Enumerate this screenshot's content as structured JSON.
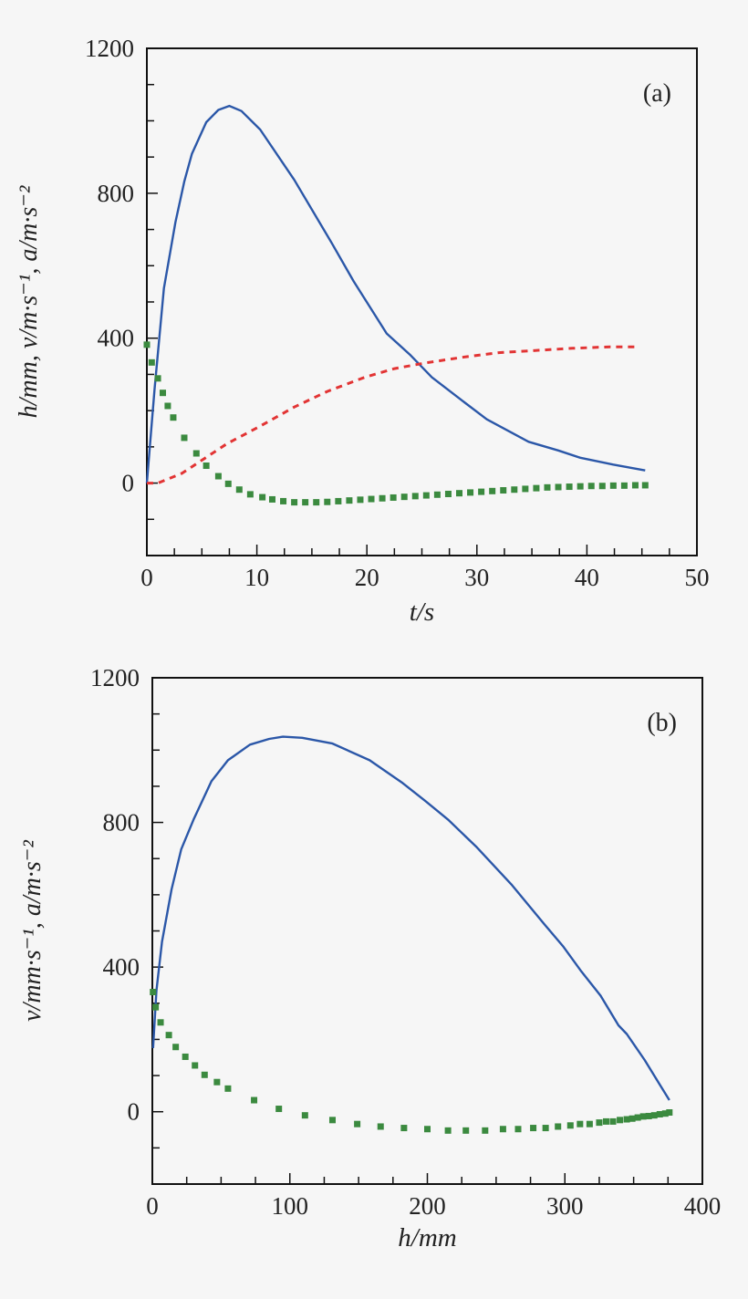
{
  "chart_data": [
    {
      "type": "line",
      "panel_label": "(a)",
      "xlabel": "t/s",
      "ylabel": "h/mm, v/m·s⁻¹, a/m·s⁻²",
      "xlim": [
        0,
        50
      ],
      "ylim": [
        -200,
        1200
      ],
      "xticks": [
        "0",
        "10",
        "20",
        "30",
        "40",
        "50"
      ],
      "yticks": [
        "0",
        "400",
        "800",
        "1200"
      ],
      "grid": false,
      "colors": {
        "v": "#2b57a8",
        "h": "#e23434",
        "a": "#3b8a3f"
      },
      "series": [
        {
          "key": "v",
          "style": "solid",
          "x": [
            0,
            0.7,
            1.55,
            2.6,
            3.4,
            4.1,
            5.4,
            6.5,
            7.5,
            8.6,
            10.3,
            13.4,
            16.8,
            18.8,
            21.8,
            23.9,
            25.9,
            28.6,
            30.9,
            34.7,
            37.4,
            39.4,
            42.4,
            45.3
          ],
          "y": [
            0,
            258,
            538,
            721,
            832,
            909,
            996,
            1030,
            1041,
            1027,
            976,
            837,
            663,
            557,
            413,
            355,
            292,
            229,
            176,
            114,
            90,
            70,
            51,
            35
          ]
        },
        {
          "key": "h",
          "style": "dashed",
          "x": [
            0,
            1,
            3.2,
            4.9,
            7.3,
            10.3,
            13.4,
            16.4,
            19.8,
            22.5,
            25.2,
            28.6,
            32,
            35.3,
            38.7,
            42.1,
            44.8
          ],
          "y": [
            0,
            0,
            27,
            61,
            109,
            157,
            210,
            253,
            292,
            316,
            331,
            347,
            360,
            366,
            372,
            376,
            376
          ]
        },
        {
          "key": "a",
          "style": "dotted",
          "x": [
            0,
            0.44,
            1,
            1.45,
            1.9,
            2.4,
            3.4,
            4.5,
            5.4,
            6.5,
            7.4,
            8.4,
            9.4,
            10.5,
            11.4,
            12.4,
            13.4,
            14.4,
            15.4,
            16.4,
            17.4,
            18.4,
            19.4,
            20.4,
            21.4,
            22.4,
            23.4,
            24.4,
            25.4,
            26.4,
            27.4,
            28.4,
            29.4,
            30.4,
            31.4,
            32.4,
            33.4,
            34.4,
            35.4,
            36.4,
            37.4,
            38.4,
            39.4,
            40.4,
            41.4,
            42.4,
            43.4,
            44.4,
            45.3
          ],
          "y": [
            382,
            333,
            289,
            249,
            213,
            181,
            125,
            82,
            48,
            19,
            -2,
            -18,
            -31,
            -39,
            -45,
            -50,
            -53,
            -53,
            -53,
            -52,
            -50,
            -48,
            -46,
            -44,
            -42,
            -40,
            -38,
            -36,
            -34,
            -32,
            -30,
            -28,
            -26,
            -24,
            -22,
            -20,
            -18,
            -16,
            -14,
            -12,
            -11,
            -10,
            -9,
            -8,
            -8,
            -7,
            -7,
            -6,
            -6
          ]
        }
      ]
    },
    {
      "type": "line",
      "panel_label": "(b)",
      "xlabel": "h/mm",
      "ylabel": "v/mm·s⁻¹, a/m·s⁻²",
      "xlim": [
        0,
        400
      ],
      "ylim": [
        -200,
        1200
      ],
      "xticks": [
        "0",
        "100",
        "200",
        "300",
        "400"
      ],
      "yticks": [
        "0",
        "400",
        "800",
        "1200"
      ],
      "grid": false,
      "colors": {
        "v": "#2b57a8",
        "a": "#3b8a3f"
      },
      "series": [
        {
          "key": "v",
          "style": "solid",
          "x": [
            0.5,
            3,
            7,
            14,
            21,
            30,
            43,
            55,
            71,
            85,
            95,
            109,
            131,
            158,
            182,
            198,
            215,
            236,
            261,
            285,
            299,
            312,
            326,
            339,
            345,
            358,
            369,
            376
          ],
          "y": [
            176,
            335,
            470,
            615,
            726,
            808,
            914,
            972,
            1015,
            1031,
            1037,
            1034,
            1018,
            972,
            909,
            861,
            808,
            731,
            629,
            519,
            456,
            388,
            321,
            239,
            215,
            143,
            75,
            32
          ]
        },
        {
          "key": "a",
          "style": "dotted",
          "x": [
            0.5,
            2.4,
            6,
            12,
            17,
            24,
            31,
            38,
            47,
            55,
            74,
            92,
            111,
            131,
            149,
            166,
            183,
            200,
            215,
            228,
            242,
            255,
            266,
            277,
            286,
            295,
            304,
            311,
            318,
            325,
            330,
            335,
            340,
            345,
            349,
            353,
            357,
            361,
            365,
            369,
            373,
            376
          ],
          "y": [
            331,
            289,
            247,
            212,
            179,
            152,
            128,
            102,
            82,
            64,
            32,
            8,
            -10,
            -23,
            -34,
            -41,
            -45,
            -48,
            -52,
            -52,
            -52,
            -48,
            -48,
            -45,
            -45,
            -41,
            -38,
            -34,
            -34,
            -30,
            -27,
            -27,
            -23,
            -21,
            -19,
            -16,
            -13,
            -12,
            -10,
            -7,
            -5,
            -2
          ]
        }
      ]
    }
  ]
}
